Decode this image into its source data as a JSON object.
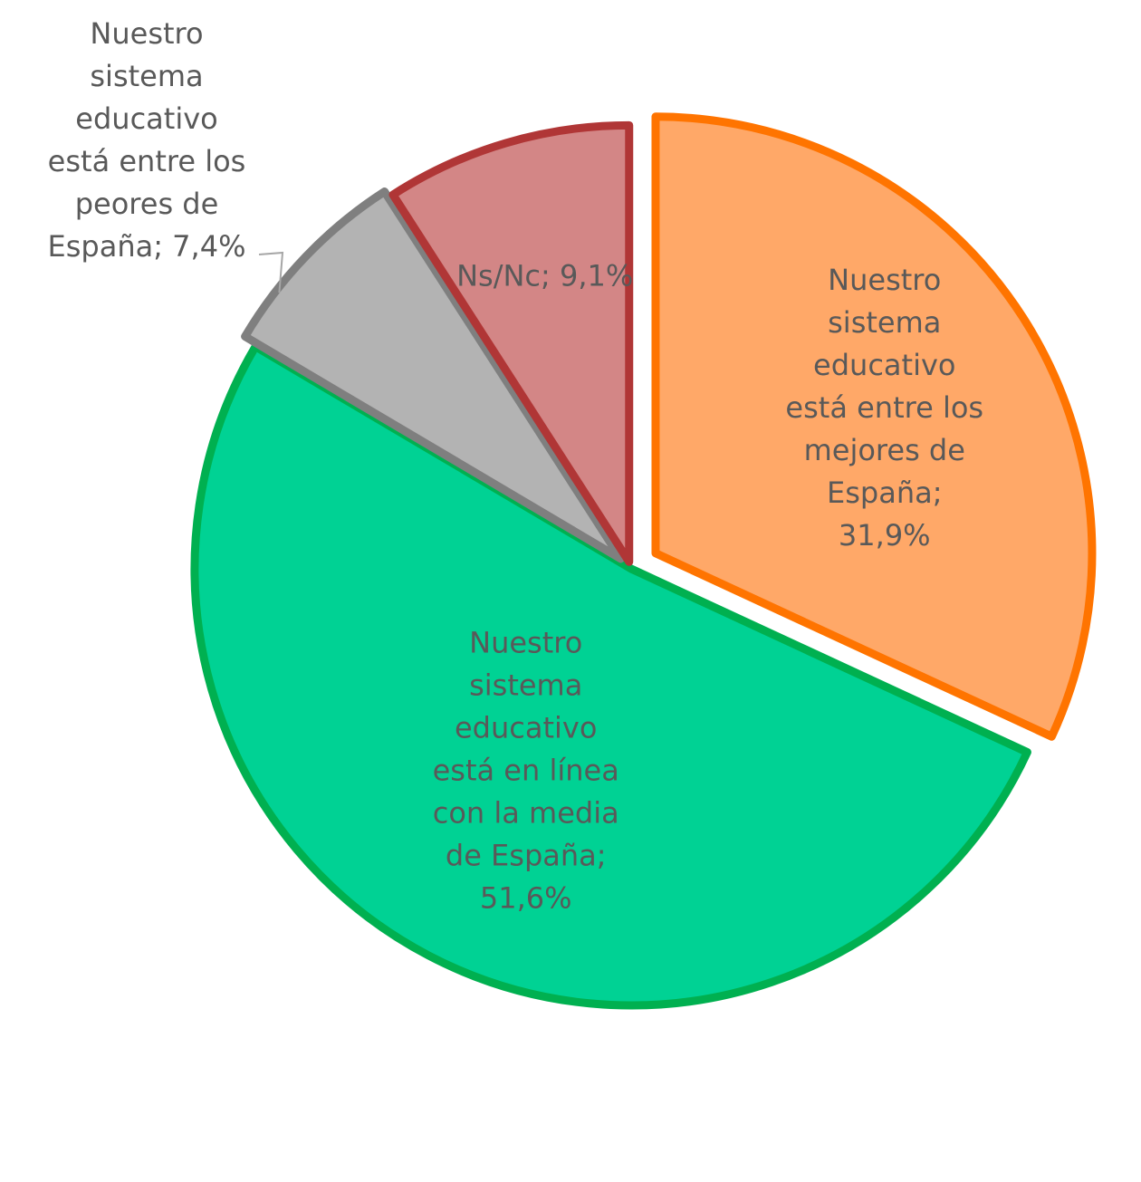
{
  "chart_data": {
    "type": "pie",
    "title": "",
    "slices": [
      {
        "label": "Nuestro sistema educativo está entre los mejores de España",
        "value": 31.9,
        "value_text": "31,9%",
        "fill": "#FFA868",
        "stroke": "#FF7400",
        "label_lines": [
          "Nuestro",
          "sistema",
          "educativo",
          "está entre los",
          "mejores de",
          "España;",
          "31,9%"
        ]
      },
      {
        "label": "Nuestro sistema educativo está en línea con la media de España",
        "value": 51.6,
        "value_text": "51,6%",
        "fill": "#00D294",
        "stroke": "#00B050",
        "label_lines": [
          "Nuestro",
          "sistema",
          "educativo",
          "está en línea",
          "con la media",
          "de España;",
          "51,6%"
        ]
      },
      {
        "label": "Nuestro sistema educativo está entre los peores de España",
        "value": 7.4,
        "value_text": "7,4%",
        "fill": "#B3B3B3",
        "stroke": "#7F7F7F",
        "label_lines": [
          "Nuestro",
          "sistema",
          "educativo",
          "está entre los",
          "peores de",
          "España; 7,4%"
        ]
      },
      {
        "label": "Ns/Nc",
        "value": 9.1,
        "value_text": "9,1%",
        "fill": "#D38686",
        "stroke": "#B03636",
        "label_lines": [
          "Ns/Nc; 9,1%"
        ]
      }
    ],
    "start_angle": "12 o'clock",
    "direction": "clockwise",
    "legend": "none",
    "label_color": "#595959"
  }
}
